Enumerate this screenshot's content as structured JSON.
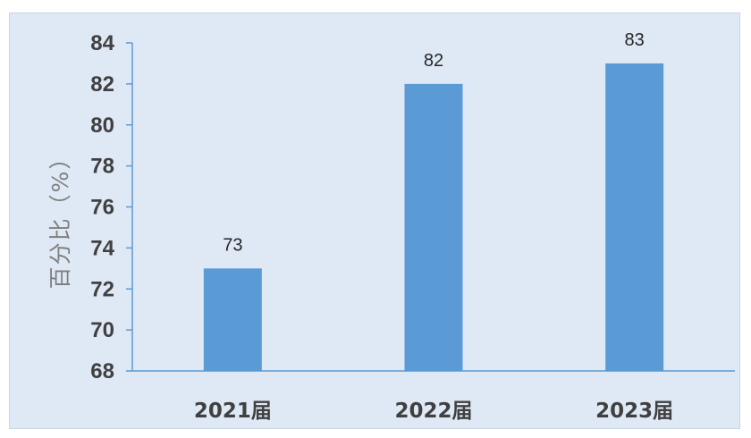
{
  "chart_data": {
    "type": "bar",
    "categories": [
      "2021届",
      "2022届",
      "2023届"
    ],
    "values": [
      73,
      82,
      83
    ],
    "data_labels": [
      "73",
      "82",
      "83"
    ],
    "title": "",
    "xlabel": "",
    "ylabel": "百分比（%）",
    "ylim": [
      68,
      84
    ],
    "yticks": [
      68,
      70,
      72,
      74,
      76,
      78,
      80,
      82,
      84
    ],
    "grid": false,
    "legend": "none",
    "colors": {
      "bar": "#5b9bd5",
      "axis": "#5b9bd5",
      "background": "#dfe9f5"
    }
  }
}
